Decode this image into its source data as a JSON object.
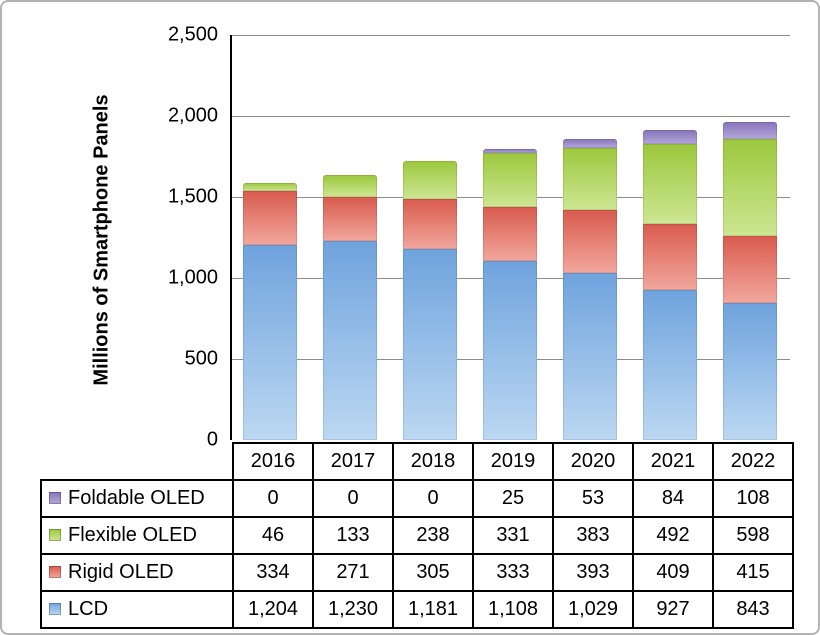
{
  "chart": {
    "yticks": [
      "2,500",
      "2,000",
      "1,500",
      "1,000",
      "500",
      "0"
    ]
  },
  "chart_data": {
    "type": "bar",
    "stacked": true,
    "title": "",
    "xlabel": "",
    "ylabel": "Millions of Smartphone Panels",
    "ylim": [
      0,
      2500
    ],
    "ytick_interval": 500,
    "grid": true,
    "legend_position": "table-left",
    "categories": [
      "2016",
      "2017",
      "2018",
      "2019",
      "2020",
      "2021",
      "2022"
    ],
    "series": [
      {
        "name": "LCD",
        "values": [
          1204,
          1230,
          1181,
          1108,
          1029,
          927,
          843
        ],
        "color_top": "#6FA3DD",
        "color_bottom": "#BCD8F2"
      },
      {
        "name": "Rigid OLED",
        "values": [
          334,
          271,
          305,
          333,
          393,
          409,
          415
        ],
        "color_top": "#D95B4E",
        "color_bottom": "#F2A79D"
      },
      {
        "name": "Flexible OLED",
        "values": [
          46,
          133,
          238,
          331,
          383,
          492,
          598
        ],
        "color_top": "#9CC83D",
        "color_bottom": "#CDE693"
      },
      {
        "name": "Foldable OLED",
        "values": [
          0,
          0,
          0,
          25,
          53,
          84,
          108
        ],
        "color_top": "#8573BB",
        "color_bottom": "#B5A8D9"
      }
    ]
  },
  "table": {
    "rows": [
      {
        "label": "Foldable OLED",
        "swatch_top": "#8573BB",
        "swatch_bottom": "#B5A8D9",
        "values": [
          "0",
          "0",
          "0",
          "25",
          "53",
          "84",
          "108"
        ]
      },
      {
        "label": "Flexible OLED",
        "swatch_top": "#9CC83D",
        "swatch_bottom": "#CDE693",
        "values": [
          "46",
          "133",
          "238",
          "331",
          "383",
          "492",
          "598"
        ]
      },
      {
        "label": "Rigid OLED",
        "swatch_top": "#D95B4E",
        "swatch_bottom": "#F2A79D",
        "values": [
          "334",
          "271",
          "305",
          "333",
          "393",
          "409",
          "415"
        ]
      },
      {
        "label": "LCD",
        "swatch_top": "#6FA3DD",
        "swatch_bottom": "#BCD8F2",
        "values": [
          "1,204",
          "1,230",
          "1,181",
          "1,108",
          "1,029",
          "927",
          "843"
        ]
      }
    ]
  }
}
